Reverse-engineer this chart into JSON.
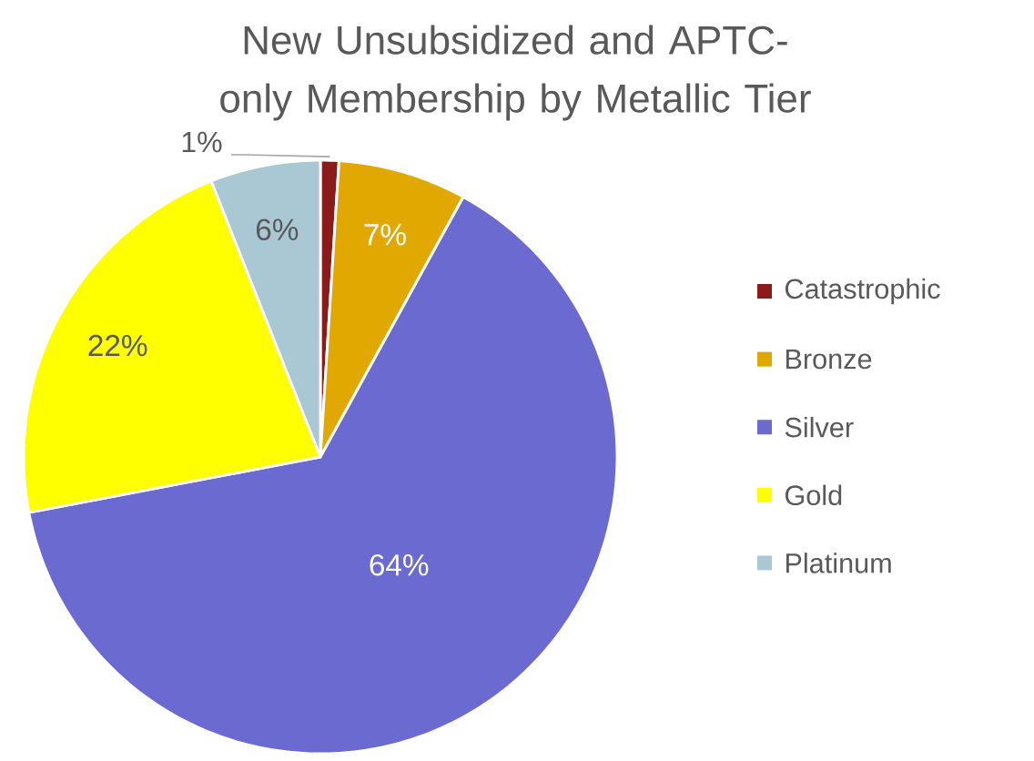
{
  "chart_data": {
    "type": "pie",
    "title": "New Unsubsidized and APTC-only Membership by Metallic Tier",
    "categories": [
      "Catastrophic",
      "Bronze",
      "Silver",
      "Gold",
      "Platinum"
    ],
    "values": [
      1,
      7,
      64,
      22,
      6
    ],
    "colors": [
      "#8b1a1a",
      "#e0a800",
      "#6a6ad0",
      "#ffff00",
      "#a9c8d4"
    ],
    "value_labels": [
      "1%",
      "7%",
      "64%",
      "22%",
      "6%"
    ],
    "legend": "right"
  }
}
